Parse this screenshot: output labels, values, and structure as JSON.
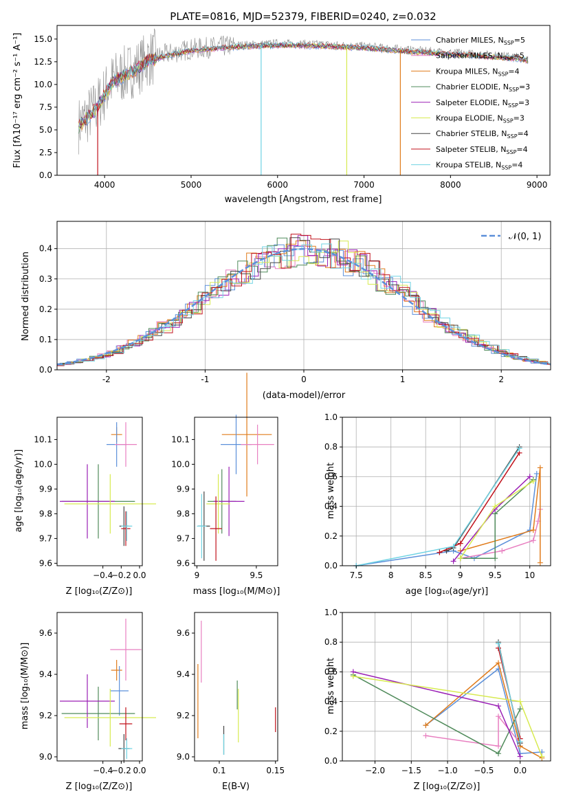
{
  "title": "PLATE=0816, MJD=52379, FIBERID=0240, z=0.032",
  "colors": {
    "chabrier_miles": "#5b8fd9",
    "salpeter_miles": "#e87fc0",
    "kroupa_miles": "#e07b1a",
    "chabrier_elodie": "#4f8a5a",
    "salpeter_elodie": "#9a1fb5",
    "kroupa_elodie": "#d7ea4f",
    "chabrier_stelib": "#444444",
    "salpeter_stelib": "#c0111b",
    "kroupa_stelib": "#6fd3e3",
    "data_grey": "#8a8a8a",
    "normal_curve": "#5b8fd9",
    "grid": "#b0b0b0"
  },
  "legend": [
    {
      "label": "Chabrier MILES, N",
      "sub": "SSP",
      "suffix": "=5",
      "color": "#5b8fd9"
    },
    {
      "label": "Salpeter MILES, N",
      "sub": "SSP",
      "suffix": "=5",
      "color": "#e87fc0"
    },
    {
      "label": "Kroupa MILES, N",
      "sub": "SSP",
      "suffix": "=4",
      "color": "#e07b1a"
    },
    {
      "label": "Chabrier ELODIE, N",
      "sub": "SSP",
      "suffix": "=3",
      "color": "#4f8a5a"
    },
    {
      "label": "Salpeter ELODIE, N",
      "sub": "SSP",
      "suffix": "=3",
      "color": "#9a1fb5"
    },
    {
      "label": "Kroupa ELODIE, N",
      "sub": "SSP",
      "suffix": "=3",
      "color": "#d7ea4f"
    },
    {
      "label": "Chabrier STELIB, N",
      "sub": "SSP",
      "suffix": "=4",
      "color": "#444444"
    },
    {
      "label": "Salpeter STELIB, N",
      "sub": "SSP",
      "suffix": "=4",
      "color": "#c0111b"
    },
    {
      "label": "Kroupa STELIB, N",
      "sub": "SSP",
      "suffix": "=4",
      "color": "#6fd3e3"
    }
  ],
  "axes_text": {
    "p1_xlabel": "wavelength [Angstrom, rest frame]",
    "p1_ylabel": "Flux [fλ10⁻¹⁷ erg cm⁻² s⁻¹ A⁻¹]",
    "p2_xlabel": "(data-model)/error",
    "p2_ylabel": "Normed distribution",
    "p2_legend": "𝒩(0, 1)",
    "p3_ylabel": "age  [log₁₀(age/yr)]",
    "p3_xlabel": "Z [log₁₀(Z/Z⊙)]",
    "p4_xlabel": "mass [log₁₀(M/M⊙)]",
    "p5_ylabel": "mass weight",
    "p5_xlabel": "age  [log₁₀(age/yr)]",
    "p6_ylabel": "mass [log₁₀(M/M⊙)]",
    "p6_xlabel": "Z [log₁₀(Z/Z⊙)]",
    "p7_xlabel": "E(B-V)",
    "p8_ylabel": "mass weight",
    "p8_xlabel": "Z [log₁₀(Z/Z⊙)]"
  },
  "chart_data": [
    {
      "type": "line",
      "name": "spectrum",
      "xlim": [
        3450,
        9150
      ],
      "ylim": [
        0,
        16.5
      ],
      "xticks": [
        4000,
        5000,
        6000,
        7000,
        8000,
        9000
      ],
      "yticks": [
        0.0,
        2.5,
        5.0,
        7.5,
        10.0,
        12.5,
        15.0
      ],
      "continuum_x": [
        3700,
        3800,
        3900,
        4000,
        4100,
        4200,
        4300,
        4400,
        4500,
        4700,
        5000,
        5500,
        6000,
        6500,
        7000,
        7500,
        8000,
        8500,
        8800,
        8900
      ],
      "continuum_y": [
        5.5,
        6.5,
        7.5,
        9.0,
        10.5,
        11.0,
        11.5,
        12.0,
        12.8,
        13.3,
        13.9,
        14.3,
        14.5,
        14.4,
        14.2,
        13.8,
        13.5,
        13.2,
        13.0,
        12.8
      ],
      "grid": false,
      "legend": "top-right"
    },
    {
      "type": "bar",
      "name": "residual_histograms",
      "xlim": [
        -2.5,
        2.5
      ],
      "ylim": [
        0,
        0.49
      ],
      "xticks": [
        -2,
        -1,
        0,
        1,
        2
      ],
      "yticks": [
        0.0,
        0.1,
        0.2,
        0.3,
        0.4
      ],
      "bin_width": 0.1,
      "normal": {
        "mu": 0,
        "sigma": 1
      },
      "grid": true,
      "legend": "top-right"
    },
    {
      "type": "scatter",
      "name": "age_vs_Z",
      "xlim": [
        -0.9,
        0.03
      ],
      "ylim": [
        9.59,
        10.19
      ],
      "xticks": [
        -0.4,
        -0.2,
        0.0
      ],
      "xticklabels": [
        "−0.4",
        "−0.2",
        "0.0"
      ],
      "yticks": [
        9.6,
        9.7,
        9.8,
        9.9,
        10.0,
        10.1
      ],
      "points": [
        {
          "x": -0.25,
          "y": 10.12,
          "xerr": 0.06,
          "yerr": 0.03,
          "series": "Kroupa MILES"
        },
        {
          "x": -0.25,
          "y": 10.08,
          "xerr": 0.11,
          "yerr": 0.09,
          "series": "Chabrier MILES"
        },
        {
          "x": -0.15,
          "y": 10.08,
          "xerr": 0.12,
          "yerr": 0.09,
          "series": "Salpeter MILES"
        },
        {
          "x": -0.45,
          "y": 9.85,
          "xerr": 0.4,
          "yerr": 0.15,
          "series": "Chabrier ELODIE"
        },
        {
          "x": -0.57,
          "y": 9.85,
          "xerr": 0.3,
          "yerr": 0.15,
          "series": "Salpeter ELODIE"
        },
        {
          "x": -0.32,
          "y": 9.84,
          "xerr": 0.5,
          "yerr": 0.12,
          "series": "Kroupa ELODIE"
        },
        {
          "x": -0.17,
          "y": 9.75,
          "xerr": 0.05,
          "yerr": 0.08,
          "series": "Chabrier STELIB"
        },
        {
          "x": -0.15,
          "y": 9.74,
          "xerr": 0.05,
          "yerr": 0.07,
          "series": "Salpeter STELIB"
        },
        {
          "x": -0.14,
          "y": 9.75,
          "xerr": 0.06,
          "yerr": 0.06,
          "series": "Kroupa STELIB"
        }
      ]
    },
    {
      "type": "scatter",
      "name": "age_vs_mass",
      "xlim": [
        8.98,
        9.68
      ],
      "ylim": [
        9.59,
        10.19
      ],
      "xticks": [
        9.0,
        9.5
      ],
      "yticks": [
        9.6,
        9.7,
        9.8,
        9.9,
        10.0,
        10.1
      ],
      "points": [
        {
          "x": 9.42,
          "y": 10.12,
          "xerr": 0.21,
          "yerr": 0.25,
          "series": "Kroupa MILES"
        },
        {
          "x": 9.33,
          "y": 10.08,
          "xerr": 0.13,
          "yerr": 0.12,
          "series": "Chabrier MILES"
        },
        {
          "x": 9.51,
          "y": 10.08,
          "xerr": 0.14,
          "yerr": 0.08,
          "series": "Salpeter MILES"
        },
        {
          "x": 9.21,
          "y": 9.85,
          "xerr": 0.12,
          "yerr": 0.13,
          "series": "Chabrier ELODIE"
        },
        {
          "x": 9.27,
          "y": 9.85,
          "xerr": 0.13,
          "yerr": 0.14,
          "series": "Salpeter ELODIE"
        },
        {
          "x": 9.18,
          "y": 9.84,
          "xerr": 0.1,
          "yerr": 0.12,
          "series": "Kroupa ELODIE"
        },
        {
          "x": 9.06,
          "y": 9.75,
          "xerr": 0.05,
          "yerr": 0.14,
          "series": "Chabrier STELIB"
        },
        {
          "x": 9.16,
          "y": 9.74,
          "xerr": 0.05,
          "yerr": 0.13,
          "series": "Salpeter STELIB"
        },
        {
          "x": 9.04,
          "y": 9.75,
          "xerr": 0.04,
          "yerr": 0.13,
          "series": "Kroupa STELIB"
        }
      ]
    },
    {
      "type": "line",
      "name": "mass_weight_vs_age",
      "xlim": [
        7.3,
        10.3
      ],
      "ylim": [
        0,
        1.0
      ],
      "xticks": [
        7.5,
        8.0,
        8.5,
        9.0,
        9.5,
        10.0
      ],
      "yticks": [
        0.0,
        0.2,
        0.4,
        0.6,
        0.8,
        1.0
      ],
      "grid": true
    },
    {
      "type": "scatter",
      "name": "mass_vs_Z",
      "xlim": [
        -0.9,
        0.03
      ],
      "ylim": [
        8.98,
        9.7
      ],
      "xticks": [
        -0.4,
        -0.2,
        0.0
      ],
      "xticklabels": [
        "−0.4",
        "−0.2",
        "0.0"
      ],
      "yticks": [
        9.0,
        9.2,
        9.4,
        9.6
      ]
    },
    {
      "type": "scatter",
      "name": "mass_vs_ebv",
      "xlim": [
        0.078,
        0.152
      ],
      "ylim": [
        8.98,
        9.7
      ],
      "xticks": [
        0.05,
        0.1,
        0.15
      ],
      "yticks": [
        9.0,
        9.2,
        9.4,
        9.6
      ]
    },
    {
      "type": "line",
      "name": "mass_weight_vs_Z",
      "xlim": [
        -2.45,
        0.42
      ],
      "ylim": [
        0,
        1.0
      ],
      "xticks": [
        -2.0,
        -1.5,
        -1.0,
        -0.5,
        0.0
      ],
      "xticklabels": [
        "−2.0",
        "−1.5",
        "−1.0",
        "−0.5",
        "0.0"
      ],
      "yticks": [
        0.0,
        0.2,
        0.4,
        0.6,
        0.8,
        1.0
      ],
      "grid": true
    }
  ]
}
